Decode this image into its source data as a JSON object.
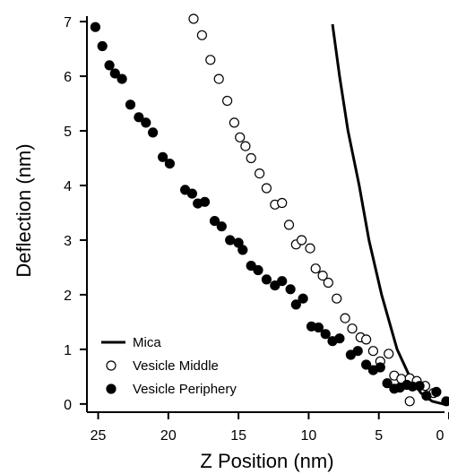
{
  "chart_data": {
    "type": "scatter",
    "xlabel": "Z Position (nm)",
    "ylabel": "Deflection (nm)",
    "xlim": [
      25.8,
      0
    ],
    "ylim": [
      -0.15,
      7.1
    ],
    "x_ticks": [
      25,
      20,
      15,
      10,
      5,
      0
    ],
    "y_ticks": [
      0,
      1,
      2,
      3,
      4,
      5,
      6,
      7
    ],
    "grid": false,
    "legend_position": "bottom-left",
    "series": [
      {
        "name": "Mica",
        "kind": "line",
        "color": "#000000",
        "points": [
          [
            8.3,
            6.95
          ],
          [
            7.8,
            6.0
          ],
          [
            7.2,
            5.0
          ],
          [
            6.4,
            4.0
          ],
          [
            5.7,
            3.0
          ],
          [
            4.8,
            2.0
          ],
          [
            3.7,
            1.0
          ],
          [
            2.8,
            0.5
          ],
          [
            2.0,
            0.2
          ],
          [
            1.2,
            0.05
          ],
          [
            0.4,
            0.0
          ]
        ]
      },
      {
        "name": "Vesicle Middle",
        "kind": "scatter",
        "marker": "open-circle",
        "color": "#000000",
        "points": [
          [
            18.2,
            7.05
          ],
          [
            17.6,
            6.75
          ],
          [
            17.0,
            6.3
          ],
          [
            16.4,
            5.95
          ],
          [
            15.8,
            5.55
          ],
          [
            15.3,
            5.15
          ],
          [
            14.9,
            4.88
          ],
          [
            14.5,
            4.72
          ],
          [
            14.1,
            4.5
          ],
          [
            13.5,
            4.22
          ],
          [
            13.0,
            3.95
          ],
          [
            12.4,
            3.65
          ],
          [
            11.9,
            3.68
          ],
          [
            11.4,
            3.28
          ],
          [
            10.9,
            2.92
          ],
          [
            10.5,
            3.0
          ],
          [
            9.9,
            2.85
          ],
          [
            9.5,
            2.48
          ],
          [
            9.0,
            2.35
          ],
          [
            8.6,
            2.22
          ],
          [
            8.0,
            1.93
          ],
          [
            7.4,
            1.57
          ],
          [
            6.9,
            1.38
          ],
          [
            6.3,
            1.22
          ],
          [
            5.9,
            1.18
          ],
          [
            5.4,
            0.97
          ],
          [
            4.9,
            0.78
          ],
          [
            4.3,
            0.92
          ],
          [
            3.9,
            0.52
          ],
          [
            3.4,
            0.46
          ],
          [
            2.8,
            0.47
          ],
          [
            2.3,
            0.42
          ],
          [
            1.7,
            0.33
          ],
          [
            1.1,
            0.2
          ],
          [
            2.8,
            0.05
          ]
        ]
      },
      {
        "name": "Vesicle Periphery",
        "kind": "scatter",
        "marker": "filled-circle",
        "color": "#000000",
        "points": [
          [
            25.2,
            6.9
          ],
          [
            24.7,
            6.55
          ],
          [
            24.2,
            6.2
          ],
          [
            23.8,
            6.05
          ],
          [
            23.3,
            5.95
          ],
          [
            22.7,
            5.48
          ],
          [
            22.1,
            5.25
          ],
          [
            21.6,
            5.15
          ],
          [
            21.1,
            4.97
          ],
          [
            20.4,
            4.52
          ],
          [
            19.9,
            4.4
          ],
          [
            18.8,
            3.92
          ],
          [
            18.3,
            3.85
          ],
          [
            17.9,
            3.67
          ],
          [
            17.4,
            3.7
          ],
          [
            16.7,
            3.35
          ],
          [
            16.2,
            3.25
          ],
          [
            15.6,
            3.0
          ],
          [
            15.0,
            2.95
          ],
          [
            14.7,
            2.82
          ],
          [
            14.1,
            2.53
          ],
          [
            13.6,
            2.45
          ],
          [
            13.0,
            2.28
          ],
          [
            12.4,
            2.17
          ],
          [
            11.9,
            2.25
          ],
          [
            11.3,
            2.1
          ],
          [
            10.9,
            1.82
          ],
          [
            10.4,
            1.93
          ],
          [
            9.8,
            1.42
          ],
          [
            9.3,
            1.4
          ],
          [
            8.8,
            1.28
          ],
          [
            8.3,
            1.15
          ],
          [
            7.8,
            1.2
          ],
          [
            7.0,
            0.9
          ],
          [
            6.5,
            0.97
          ],
          [
            5.9,
            0.72
          ],
          [
            5.4,
            0.62
          ],
          [
            4.9,
            0.67
          ],
          [
            4.4,
            0.38
          ],
          [
            3.9,
            0.28
          ],
          [
            3.5,
            0.3
          ],
          [
            3.0,
            0.35
          ],
          [
            2.6,
            0.32
          ],
          [
            2.1,
            0.33
          ],
          [
            1.6,
            0.15
          ],
          [
            0.9,
            0.22
          ],
          [
            0.2,
            0.05
          ]
        ]
      }
    ]
  }
}
